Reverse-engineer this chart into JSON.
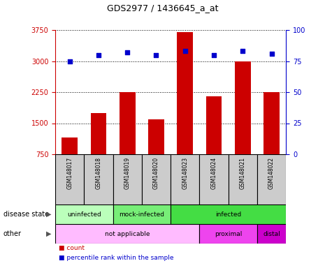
{
  "title": "GDS2977 / 1436645_a_at",
  "samples": [
    "GSM148017",
    "GSM148018",
    "GSM148019",
    "GSM148020",
    "GSM148023",
    "GSM148024",
    "GSM148021",
    "GSM148022"
  ],
  "counts": [
    1150,
    1750,
    2250,
    1600,
    3700,
    2150,
    3000,
    2250
  ],
  "percentile_ranks": [
    75,
    80,
    82,
    80,
    83,
    80,
    83,
    81
  ],
  "bar_color": "#cc0000",
  "dot_color": "#0000cc",
  "ylim_left": [
    750,
    3750
  ],
  "ylim_right": [
    0,
    100
  ],
  "yticks_left": [
    750,
    1500,
    2250,
    3000,
    3750
  ],
  "yticks_right": [
    0,
    25,
    50,
    75,
    100
  ],
  "disease_state_groups": [
    {
      "label": "uninfected",
      "start": 0,
      "end": 2,
      "color": "#bbffbb"
    },
    {
      "label": "mock-infected",
      "start": 2,
      "end": 4,
      "color": "#77ee77"
    },
    {
      "label": "infected",
      "start": 4,
      "end": 8,
      "color": "#44dd44"
    }
  ],
  "other_groups": [
    {
      "label": "not applicable",
      "start": 0,
      "end": 5,
      "color": "#ffbbff"
    },
    {
      "label": "proximal",
      "start": 5,
      "end": 7,
      "color": "#ee44ee"
    },
    {
      "label": "distal",
      "start": 7,
      "end": 8,
      "color": "#cc00cc"
    }
  ],
  "row_labels": [
    "disease state",
    "other"
  ],
  "legend": [
    {
      "color": "#cc0000",
      "label": "count"
    },
    {
      "color": "#0000cc",
      "label": "percentile rank within the sample"
    }
  ],
  "background_color": "#ffffff",
  "cell_bg": "#cccccc",
  "cell_border": "#888888"
}
